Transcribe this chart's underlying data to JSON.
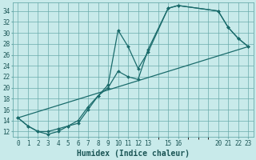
{
  "xlabel": "Humidex (Indice chaleur)",
  "background_color": "#c8eaea",
  "grid_color": "#6aabab",
  "line_color": "#1a6b6b",
  "xlim": [
    -0.5,
    23.5
  ],
  "ylim": [
    11,
    35.5
  ],
  "yticks": [
    12,
    14,
    16,
    18,
    20,
    22,
    24,
    26,
    28,
    30,
    32,
    34
  ],
  "xtick_positions": [
    0,
    1,
    2,
    3,
    4,
    5,
    6,
    7,
    8,
    9,
    10,
    11,
    12,
    13,
    15,
    16,
    20,
    21,
    22,
    23
  ],
  "xtick_labels": [
    "0",
    "1",
    "2",
    "3",
    "4",
    "5",
    "6",
    "7",
    "8",
    "9",
    "10",
    "11",
    "12",
    "13",
    "15",
    "16",
    "20",
    "21",
    "22",
    "23"
  ],
  "series": [
    {
      "x": [
        0,
        1,
        2,
        3,
        4,
        5,
        6,
        7,
        8,
        9,
        10,
        11,
        12,
        13,
        15,
        16,
        20,
        21,
        22,
        23
      ],
      "y": [
        14.5,
        13.0,
        12.0,
        11.5,
        12.0,
        13.0,
        13.5,
        16.0,
        18.5,
        20.0,
        23.0,
        22.0,
        21.5,
        27.0,
        34.5,
        35.0,
        34.0,
        31.0,
        29.0,
        27.5
      ]
    },
    {
      "x": [
        0,
        1,
        2,
        3,
        4,
        5,
        6,
        7,
        8,
        9,
        10,
        11,
        12,
        13,
        15,
        16,
        20,
        21,
        22,
        23
      ],
      "y": [
        14.5,
        13.0,
        12.0,
        12.0,
        12.5,
        13.0,
        14.0,
        16.5,
        18.5,
        20.5,
        30.5,
        27.5,
        23.5,
        26.5,
        34.5,
        35.0,
        34.0,
        31.0,
        29.0,
        27.5
      ]
    },
    {
      "x": [
        0,
        23
      ],
      "y": [
        14.5,
        27.5
      ]
    }
  ]
}
